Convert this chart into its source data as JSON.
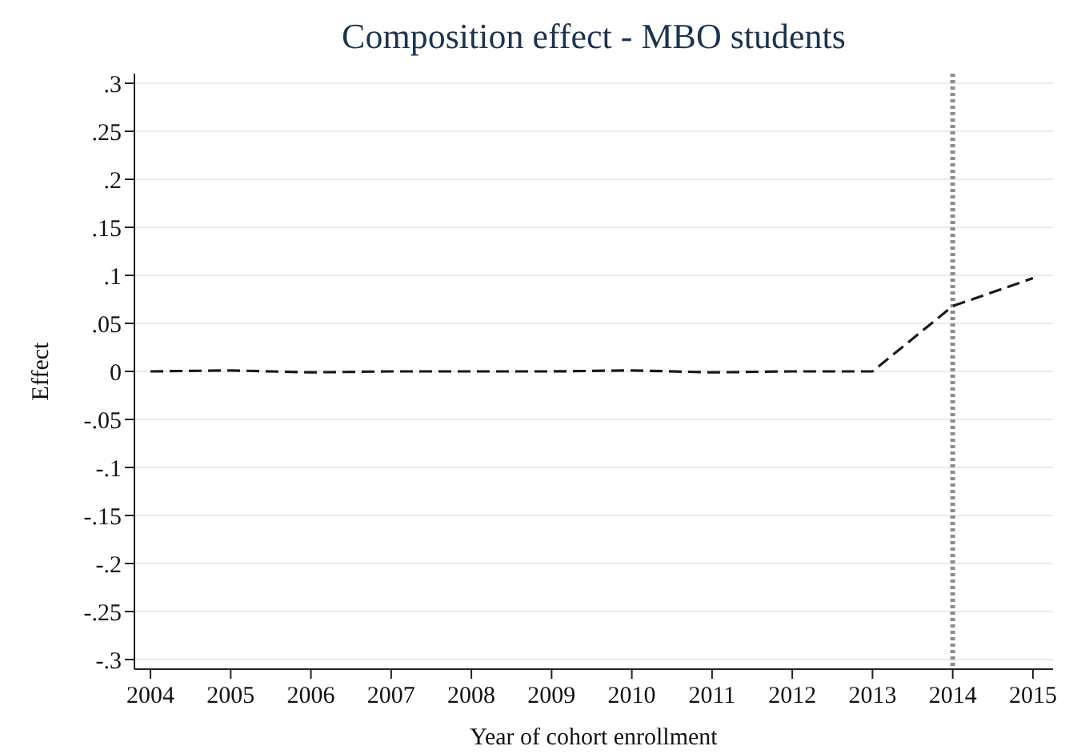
{
  "chart_data": {
    "type": "line",
    "title": "Composition effect - MBO students",
    "xlabel": "Year of cohort enrollment",
    "ylabel": "Effect",
    "x": [
      2004,
      2005,
      2006,
      2007,
      2008,
      2009,
      2010,
      2011,
      2012,
      2013,
      2014,
      2015
    ],
    "series": [
      {
        "color": "#1a1a1a",
        "values": [
          0,
          0.001,
          -0.001,
          0,
          0,
          0,
          0.001,
          -0.001,
          0,
          0,
          0.068,
          0.097
        ]
      }
    ],
    "xlim": [
      2003.8,
      2015.25
    ],
    "xticks": [
      2004,
      2005,
      2006,
      2007,
      2008,
      2009,
      2010,
      2011,
      2012,
      2013,
      2014,
      2015
    ],
    "ylim": [
      -0.31,
      0.31
    ],
    "yticks": [
      {
        "value": 0.3,
        "label": ".3"
      },
      {
        "value": 0.25,
        "label": ".25"
      },
      {
        "value": 0.2,
        "label": ".2"
      },
      {
        "value": 0.15,
        "label": ".15"
      },
      {
        "value": 0.1,
        "label": ".1"
      },
      {
        "value": 0.05,
        "label": ".05"
      },
      0,
      {
        "value": -0.05,
        "label": "-.05"
      },
      {
        "value": -0.1,
        "label": "-.1"
      },
      {
        "value": -0.15,
        "label": "-.15"
      },
      {
        "value": -0.2,
        "label": "-.2"
      },
      {
        "value": -0.25,
        "label": "-.25"
      },
      {
        "value": -0.3,
        "label": "-.3"
      }
    ],
    "grid": "y",
    "line_style": "dashed",
    "ref_lines": [
      {
        "axis": "x",
        "value": 2014,
        "color": "#8c8c8c",
        "line_style": "dotted"
      }
    ]
  }
}
